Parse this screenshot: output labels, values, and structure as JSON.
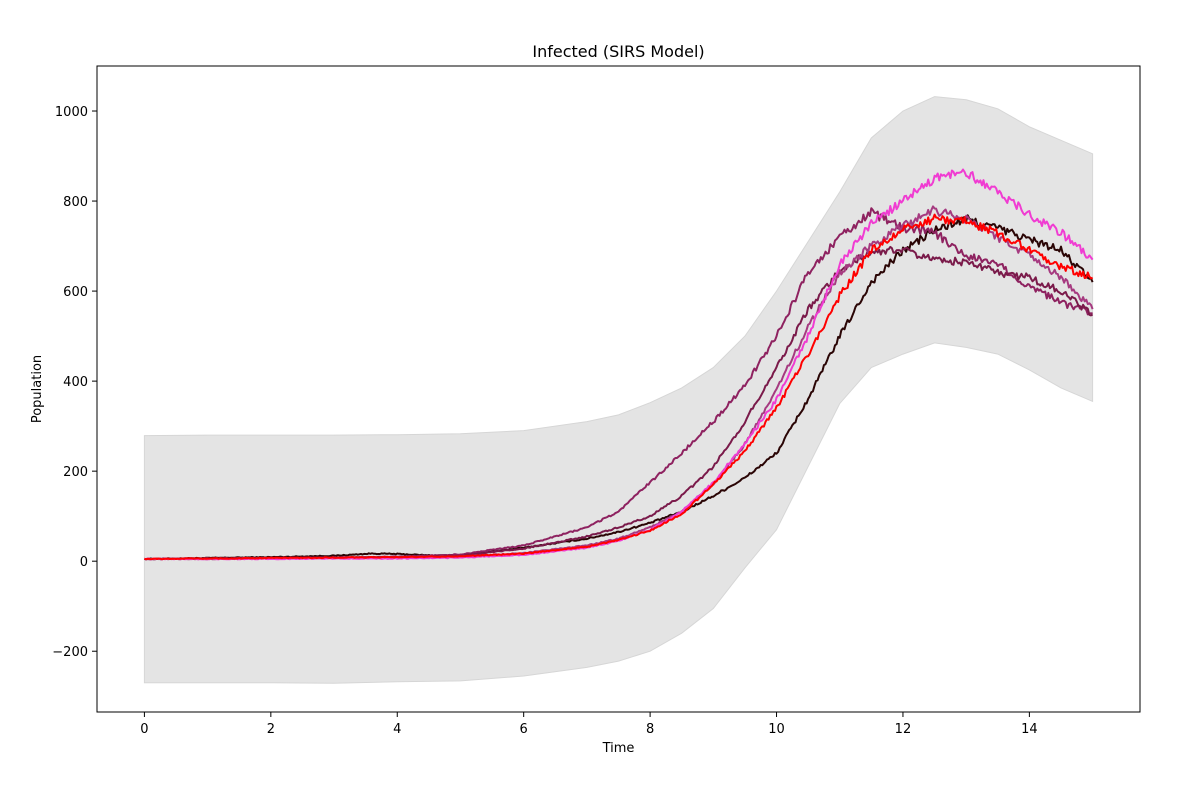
{
  "chart_data": {
    "type": "line",
    "title": "Infected (SIRS Model)",
    "xlabel": "Time",
    "ylabel": "Population",
    "xlim": [
      -0.75,
      15.75
    ],
    "ylim": [
      -335,
      1100
    ],
    "x_ticks": [
      0,
      2,
      4,
      6,
      8,
      10,
      12,
      14
    ],
    "x_tick_labels": [
      "0",
      "2",
      "4",
      "6",
      "8",
      "10",
      "12",
      "14"
    ],
    "y_ticks": [
      -200,
      0,
      200,
      400,
      600,
      800,
      1000
    ],
    "y_tick_labels": [
      "−200",
      "0",
      "200",
      "400",
      "600",
      "800",
      "1000"
    ],
    "grid": false,
    "legend": "none",
    "band": {
      "color": "#e4e4e4",
      "edge_color": "#d6d6d6",
      "x": [
        0,
        1,
        2,
        3,
        4,
        5,
        6,
        7,
        7.5,
        8,
        8.5,
        9,
        9.5,
        10,
        10.5,
        11,
        11.5,
        12,
        12.5,
        13,
        13.5,
        14,
        14.5,
        15
      ],
      "upper": [
        279,
        280,
        280,
        280,
        281,
        283,
        290,
        310,
        325,
        352,
        385,
        430,
        500,
        600,
        710,
        820,
        940,
        1000,
        1032,
        1025,
        1005,
        965,
        935,
        905
      ],
      "lower": [
        -270,
        -270,
        -270,
        -271,
        -268,
        -266,
        -255,
        -236,
        -222,
        -200,
        -160,
        -105,
        -15,
        70,
        210,
        350,
        430,
        460,
        485,
        475,
        460,
        425,
        385,
        355
      ]
    },
    "series": [
      {
        "color": "#2a0505",
        "x": [
          0,
          1,
          2,
          3,
          3.6,
          4,
          4.5,
          5,
          6,
          7,
          7.5,
          8,
          8.5,
          9,
          9.5,
          10,
          10.5,
          11,
          11.5,
          12,
          12.5,
          13,
          13.5,
          14,
          14.5,
          15
        ],
        "y": [
          5,
          7,
          9,
          12,
          17,
          16,
          13,
          13,
          30,
          50,
          65,
          85,
          110,
          145,
          185,
          240,
          360,
          500,
          620,
          690,
          735,
          760,
          740,
          715,
          690,
          620
        ]
      },
      {
        "color": "#8e2260",
        "x": [
          0,
          1,
          2,
          3,
          4,
          5,
          6,
          7,
          7.5,
          8,
          8.5,
          9,
          9.5,
          10,
          10.5,
          11,
          11.5,
          12,
          12.5,
          13,
          13.5,
          14,
          14.5,
          15
        ],
        "y": [
          5,
          6,
          7,
          8,
          10,
          15,
          35,
          75,
          110,
          175,
          240,
          310,
          390,
          500,
          640,
          720,
          775,
          740,
          730,
          680,
          660,
          610,
          575,
          550
        ]
      },
      {
        "color": "#7a1a4a",
        "x": [
          0,
          1,
          2,
          3,
          4,
          5,
          6,
          7,
          7.5,
          8,
          8.5,
          9,
          9.5,
          10,
          10.5,
          11,
          11.5,
          12,
          12.5,
          13,
          13.5,
          14,
          14.5,
          15
        ],
        "y": [
          5,
          6,
          7,
          8,
          9,
          12,
          28,
          55,
          75,
          100,
          145,
          210,
          310,
          430,
          560,
          645,
          690,
          690,
          670,
          665,
          640,
          630,
          600,
          548
        ]
      },
      {
        "color": "#a63a80",
        "x": [
          0,
          1,
          2,
          3,
          4,
          5,
          6,
          7,
          7.5,
          8,
          8.5,
          9,
          9.5,
          10,
          10.5,
          11,
          11.5,
          12,
          12.5,
          13,
          13.5,
          14,
          14.5,
          15
        ],
        "y": [
          5,
          5,
          6,
          7,
          8,
          10,
          18,
          35,
          50,
          75,
          110,
          170,
          260,
          380,
          520,
          640,
          700,
          745,
          780,
          760,
          720,
          680,
          630,
          560
        ]
      },
      {
        "color": "#f03cd2",
        "x": [
          0,
          1,
          2,
          3,
          4,
          5,
          6,
          7,
          7.5,
          8,
          8.5,
          9,
          9.5,
          10,
          10.5,
          11,
          11.5,
          12,
          12.5,
          13,
          13.5,
          14,
          14.5,
          15
        ],
        "y": [
          5,
          5,
          5,
          6,
          6,
          8,
          14,
          30,
          45,
          70,
          110,
          175,
          260,
          360,
          500,
          660,
          750,
          800,
          850,
          865,
          820,
          770,
          730,
          670
        ]
      },
      {
        "color": "#ff0000",
        "x": [
          0,
          1,
          2,
          3,
          4,
          5,
          6,
          7,
          7.5,
          8,
          8.5,
          9,
          9.5,
          10,
          10.5,
          11,
          11.5,
          12,
          12.5,
          13,
          13.5,
          14,
          14.5,
          15
        ],
        "y": [
          5,
          6,
          7,
          8,
          9,
          11,
          17,
          32,
          47,
          68,
          105,
          170,
          245,
          340,
          460,
          590,
          690,
          735,
          762,
          755,
          730,
          690,
          655,
          630
        ]
      }
    ]
  }
}
